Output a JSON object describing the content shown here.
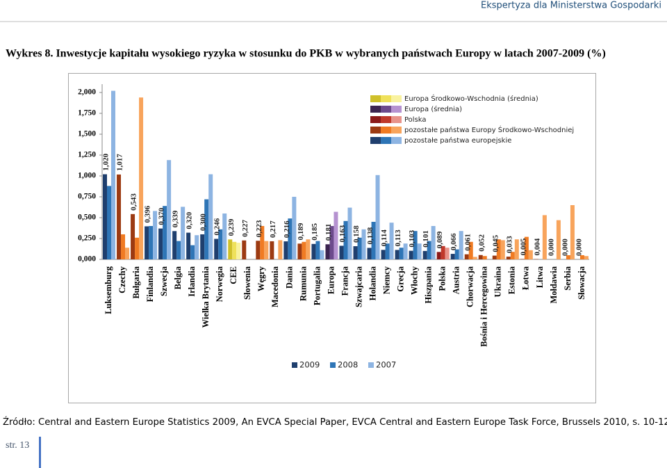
{
  "header": "Ekspertyza dla Ministerstwa Gospodarki",
  "figure_title": "Wykres 8. Inwestycje kapitału wysokiego ryzyka w stosunku do PKB w wybranych państwach Europy w latach 2007-2009 (%)",
  "source": "Źródło: Central and Eastern Europe Statistics 2009, An EVCA Special Paper, EVCA Central and Eastern Europe Task Force, Brussels 2010, s. 10-12",
  "page": "str. 13",
  "chart_data": {
    "type": "bar",
    "categories": [
      "Luksemburg",
      "Czechy",
      "Bułgaria",
      "Finlandia",
      "Szwecja",
      "Belgia",
      "Irlandia",
      "Wielka Brytania",
      "Norwegia",
      "CEE",
      "Słowenia",
      "Węgry",
      "Macedonia",
      "Dania",
      "Rumunia",
      "Portugalia",
      "Europa",
      "Francja",
      "Szwajcaria",
      "Holandia",
      "Niemcy",
      "Grecja",
      "Włochy",
      "Hiszpania",
      "Polska",
      "Austria",
      "Chorwacja",
      "Bośnia i Hercegowina",
      "Ukraina",
      "Estonia",
      "Łotwa",
      "Litwa",
      "Mołdawia",
      "Serbia",
      "Słowacja"
    ],
    "series": [
      {
        "name": "2009",
        "color": "#1f3f6e",
        "values": [
          1.02,
          1.017,
          0.543,
          0.396,
          0.37,
          0.339,
          0.32,
          0.3,
          0.246,
          0.239,
          0.227,
          0.223,
          0.217,
          0.216,
          0.189,
          0.185,
          0.181,
          0.163,
          0.158,
          0.138,
          0.114,
          0.113,
          0.103,
          0.101,
          0.089,
          0.066,
          0.061,
          0.052,
          0.045,
          0.033,
          0.005,
          0.004,
          0.0,
          0.0,
          0.0
        ],
        "value_labels": [
          "1,020",
          "1,017",
          "0,543",
          "0,396",
          "0,370",
          "0,339",
          "0,320",
          "0,300",
          "0,246",
          "0,239",
          "0,227",
          "0,223",
          "0,217",
          "0,216",
          "0,189",
          "0,185",
          "0,181",
          "0,163",
          "0,158",
          "0,138",
          "0,114",
          "0,113",
          "0,103",
          "0,101",
          "0,089",
          "0,066",
          "0,061",
          "0,052",
          "0,045",
          "0,033",
          "0,005",
          "0,004",
          "0,000",
          "0,000",
          "0,000"
        ]
      },
      {
        "name": "2008",
        "color": "#2e75b6",
        "values": [
          0.88,
          0.3,
          0.26,
          0.4,
          0.64,
          0.22,
          0.17,
          0.72,
          0.36,
          0.21,
          0,
          0.4,
          0,
          0.49,
          0.21,
          0.22,
          0.4,
          0.46,
          0.26,
          0.45,
          0.19,
          0.14,
          0.34,
          0.22,
          0.16,
          0.12,
          0.21,
          0.04,
          0.24,
          0.09,
          0.27,
          0,
          0,
          0.05,
          0.05
        ]
      },
      {
        "name": "2007",
        "color": "#8db4e2",
        "values": [
          2.02,
          0.14,
          1.94,
          0.58,
          1.19,
          0.63,
          0.29,
          1.02,
          0.55,
          0.2,
          0,
          0.22,
          0.23,
          0.75,
          0.24,
          0.11,
          0.57,
          0.62,
          0.36,
          1.01,
          0.44,
          0.19,
          0.19,
          0.4,
          0.14,
          0.34,
          0.03,
          0,
          0.23,
          0.24,
          0.11,
          0.53,
          0.47,
          0.65,
          0.04
        ]
      }
    ],
    "groups": [
      {
        "name": "Europa Środkowo-Wschodnia (średnia)",
        "colors": [
          "#cfc02a",
          "#efe15a",
          "#f9f29f"
        ]
      },
      {
        "name": "Europa (średnia)",
        "colors": [
          "#3b2450",
          "#6c4a8c",
          "#b592d0"
        ]
      },
      {
        "name": "Polska",
        "colors": [
          "#8b1a1a",
          "#c0392b",
          "#e8938a"
        ]
      },
      {
        "name": "pozostałe państwa Europy Środkowo-Wschodniej",
        "colors": [
          "#9c3a12",
          "#f07b23",
          "#f8a45c"
        ]
      },
      {
        "name": "pozostałe państwa europejskie",
        "colors": [
          "#1f3f6e",
          "#2e75b6",
          "#8db4e2"
        ]
      }
    ],
    "category_group": [
      4,
      3,
      3,
      4,
      4,
      4,
      4,
      4,
      4,
      0,
      3,
      3,
      3,
      4,
      3,
      4,
      1,
      4,
      4,
      4,
      4,
      4,
      4,
      4,
      2,
      4,
      3,
      3,
      3,
      3,
      3,
      3,
      3,
      3,
      3
    ],
    "ylim": [
      0,
      2
    ],
    "yticks": [
      {
        "value": 0,
        "label": "0,000"
      },
      {
        "value": 0.25,
        "label": "0,250"
      },
      {
        "value": 0.5,
        "label": "0,500"
      },
      {
        "value": 0.75,
        "label": "0,750"
      },
      {
        "value": 1,
        "label": "1,000"
      },
      {
        "value": 1.25,
        "label": "1,250"
      },
      {
        "value": 1.5,
        "label": "1,500"
      },
      {
        "value": 1.75,
        "label": "1,750"
      },
      {
        "value": 2,
        "label": "2,000"
      }
    ],
    "grid": false
  }
}
